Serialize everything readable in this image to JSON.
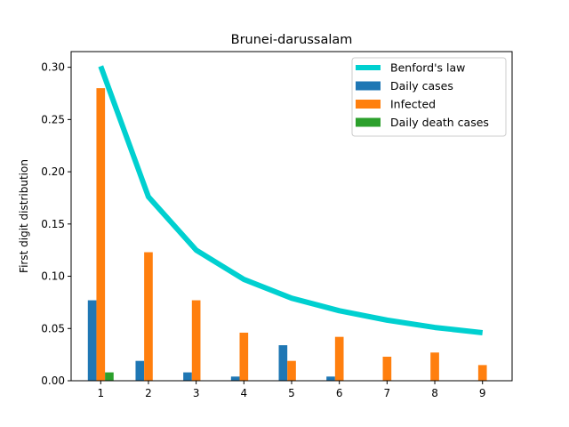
{
  "chart_data": {
    "type": "bar",
    "title": "Brunei-darussalam",
    "xlabel": "",
    "ylabel": "First digit distribution",
    "categories": [
      "1",
      "2",
      "3",
      "4",
      "5",
      "6",
      "7",
      "8",
      "9"
    ],
    "x": [
      1,
      2,
      3,
      4,
      5,
      6,
      7,
      8,
      9
    ],
    "ylim": [
      0,
      0.315
    ],
    "xlim": [
      0.38,
      9.62
    ],
    "yticks": [
      0.0,
      0.05,
      0.1,
      0.15,
      0.2,
      0.25,
      0.3
    ],
    "ytick_labels": [
      "0.00",
      "0.05",
      "0.10",
      "0.15",
      "0.20",
      "0.25",
      "0.30"
    ],
    "legend_position": "top-right",
    "grid": false,
    "line_series": {
      "name": "Benford's law",
      "color": "#00d0d0",
      "values": [
        0.301,
        0.176,
        0.125,
        0.097,
        0.079,
        0.067,
        0.058,
        0.051,
        0.046
      ]
    },
    "series": [
      {
        "name": "Daily cases",
        "color": "#1f77b4",
        "values": [
          0.077,
          0.019,
          0.008,
          0.004,
          0.034,
          0.004,
          0,
          0,
          0
        ]
      },
      {
        "name": "Infected",
        "color": "#ff7f0e",
        "values": [
          0.28,
          0.123,
          0.077,
          0.046,
          0.019,
          0.042,
          0.023,
          0.027,
          0.015
        ]
      },
      {
        "name": "Daily death cases",
        "color": "#2ca02c",
        "values": [
          0.008,
          0,
          0,
          0,
          0,
          0,
          0,
          0,
          0
        ]
      }
    ]
  }
}
